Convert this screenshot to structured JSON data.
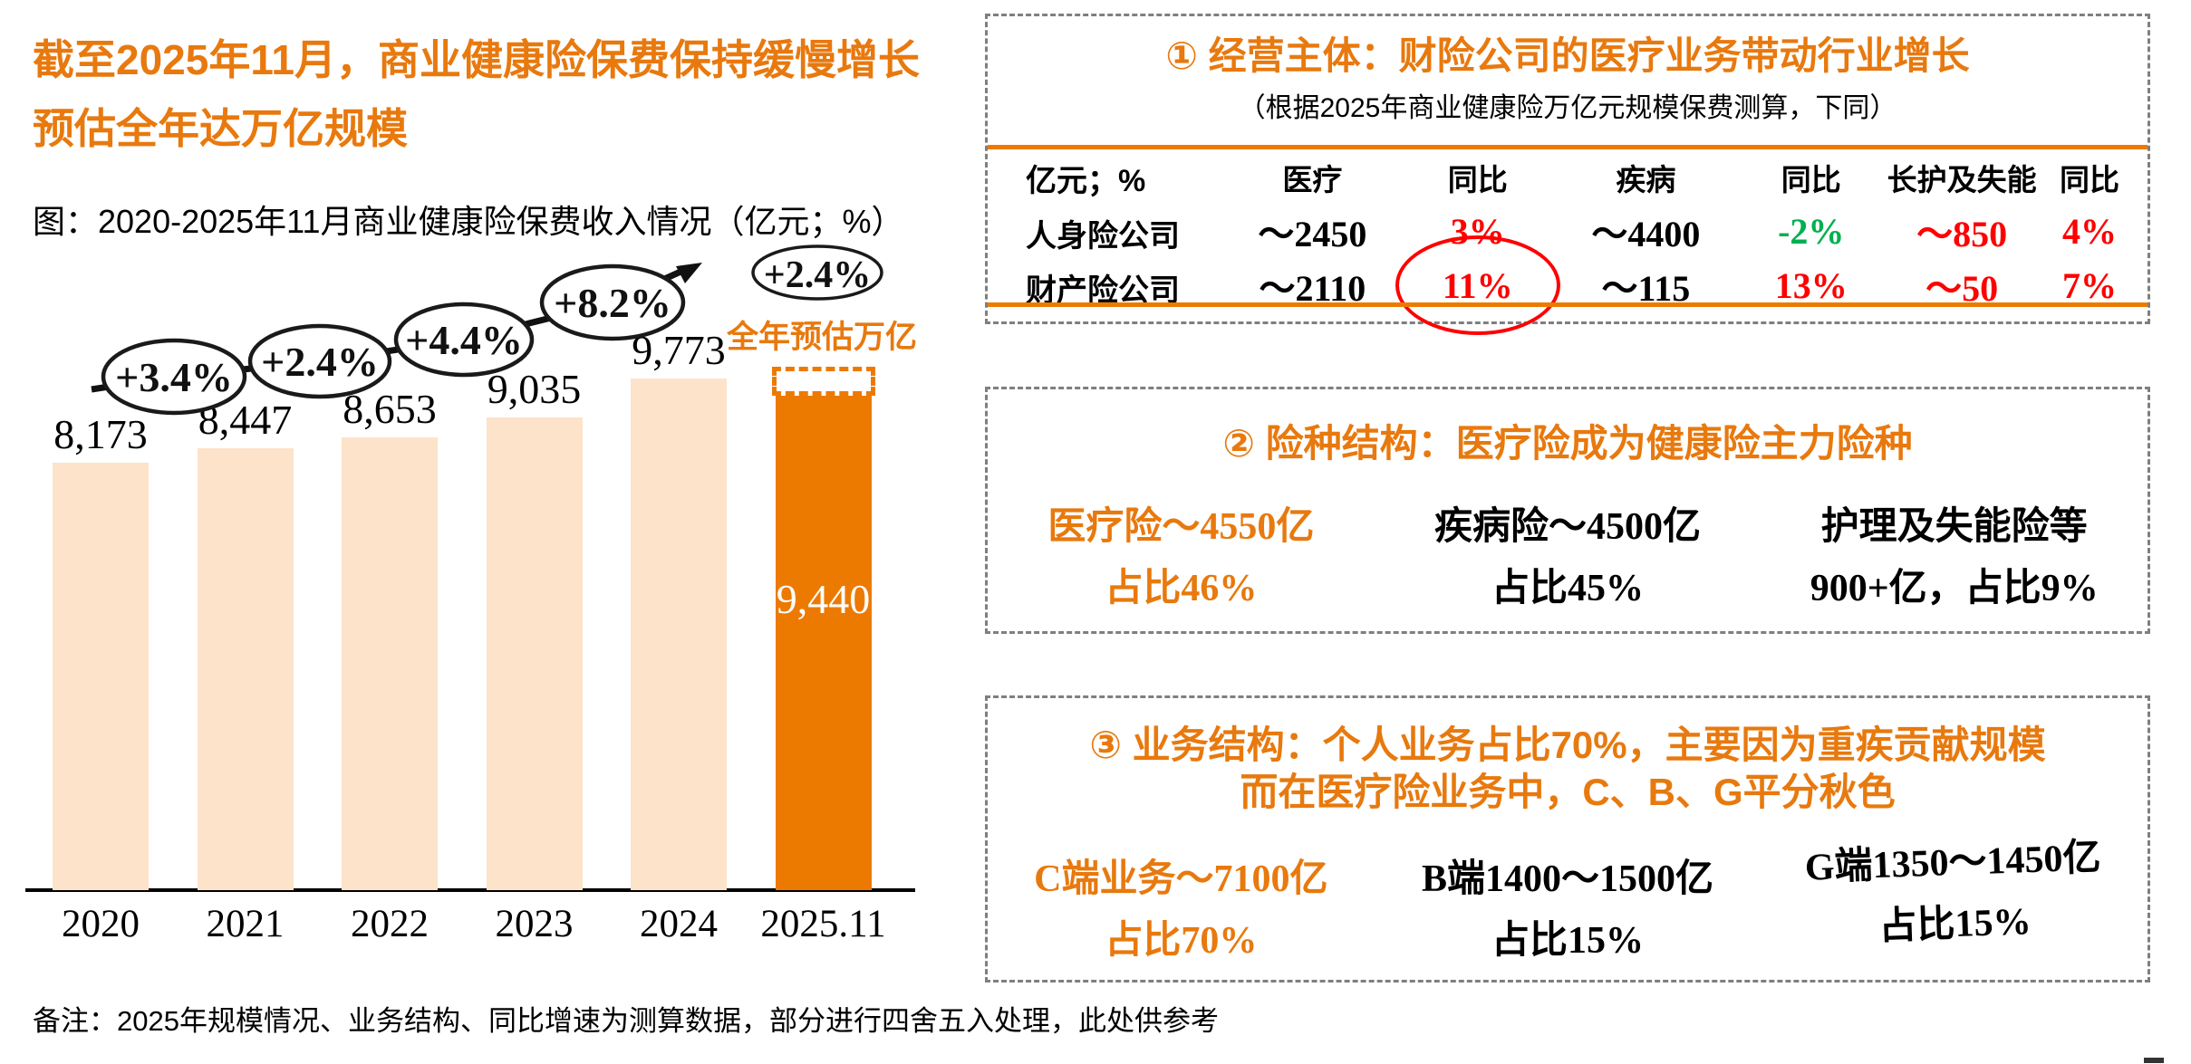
{
  "headline": {
    "line1": "截至2025年11月，商业健康险保费保持缓慢增长",
    "line2": "预估全年达万亿规模"
  },
  "chart_data": {
    "type": "bar",
    "title": "图：2020-2025年11月商业健康险保费收入情况（亿元；%）",
    "categories": [
      "2020",
      "2021",
      "2022",
      "2023",
      "2024",
      "2025.11"
    ],
    "values": [
      8173,
      8447,
      8653,
      9035,
      9773,
      9440
    ],
    "bar_labels": [
      "8,173",
      "8,447",
      "8,653",
      "9,035",
      "9,773",
      "9,440"
    ],
    "yoy_growth": [
      "+3.4%",
      "+2.4%",
      "+4.4%",
      "+8.2%",
      "+2.4%"
    ],
    "forecast_annotation": "全年预估万亿",
    "forecast_level": 10000,
    "highlight_index": 5,
    "ylim": [
      0,
      10000
    ],
    "grid": false,
    "colors": {
      "bar": "#FCE3C9",
      "highlight_bar": "#ED7A00"
    }
  },
  "panel1": {
    "title": "① 经营主体：财险公司的医疗业务带动行业增长",
    "subtitle": "（根据2025年商业健康险万亿元规模保费测算，下同）",
    "table": {
      "headers": [
        "亿元；%",
        "医疗",
        "同比",
        "疾病",
        "同比",
        "长护及失能",
        "同比"
      ],
      "rows": [
        {
          "label": "人身险公司",
          "cells": [
            {
              "text": "～2450",
              "color": "black"
            },
            {
              "text": "3%",
              "color": "red"
            },
            {
              "text": "～4400",
              "color": "black"
            },
            {
              "text": "-2%",
              "color": "green"
            },
            {
              "text": "～850",
              "color": "red"
            },
            {
              "text": "4%",
              "color": "red"
            }
          ]
        },
        {
          "label": "财产险公司",
          "cells": [
            {
              "text": "～2110",
              "color": "black"
            },
            {
              "text": "11%",
              "color": "red",
              "circled": true
            },
            {
              "text": "～115",
              "color": "black"
            },
            {
              "text": "13%",
              "color": "red"
            },
            {
              "text": "～50",
              "color": "red"
            },
            {
              "text": "7%",
              "color": "red"
            }
          ]
        }
      ]
    }
  },
  "panel2": {
    "title": "② 险种结构：医疗险成为健康险主力险种",
    "stats": [
      {
        "line1": "医疗险～4550亿",
        "line2": "占比46%",
        "highlight": true
      },
      {
        "line1": "疾病险～4500亿",
        "line2": "占比45%",
        "highlight": false
      },
      {
        "line1": "护理及失能险等",
        "line2": "900+亿，占比9%",
        "highlight": false
      }
    ]
  },
  "panel3": {
    "title_line1": "③ 业务结构：个人业务占比70%，主要因为重疾贡献规模",
    "title_line2": "而在医疗险业务中，C、B、G平分秋色",
    "stats": [
      {
        "line1": "C端业务～7100亿",
        "line2": "占比70%",
        "highlight": true
      },
      {
        "line1": "B端1400～1500亿",
        "line2": "占比15%",
        "highlight": false
      },
      {
        "line1": "G端1350～1450亿",
        "line2": "占比15%",
        "highlight": false
      }
    ]
  },
  "footnote": "备注：2025年规模情况、业务结构、同比增速为测算数据，部分进行四舍五入处理，此处供参考",
  "colors": {
    "accent_orange": "#ED7A00",
    "light_bar": "#FCE3C9",
    "red": "#FF0000",
    "green": "#00B050"
  }
}
